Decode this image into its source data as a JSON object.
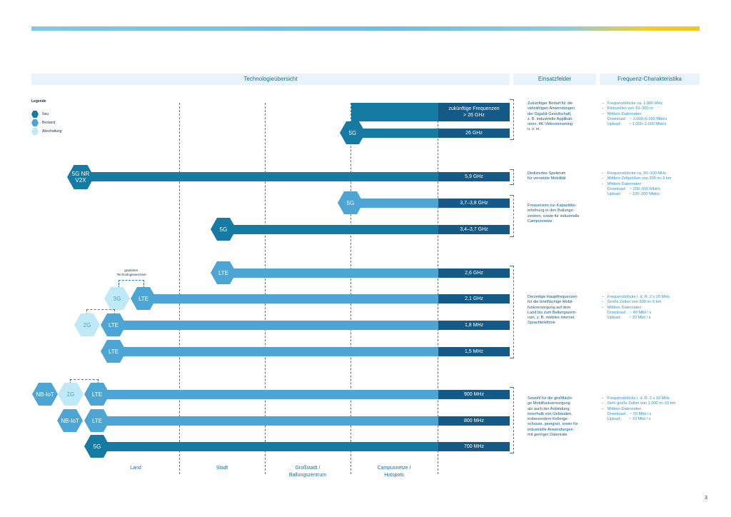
{
  "headers": {
    "technology": "Technologieübersicht",
    "fields": "Einsatzfelder",
    "frequency": "Frequenz-Charakteristika"
  },
  "legend": {
    "title": "Legende",
    "new": "Neu",
    "existing": "Bestand",
    "shutdown": "Abschaltung"
  },
  "bars": {
    "future": "zukünftige Frequenzen\n> 26 GHz",
    "f26": "26 GHz",
    "f59": "5,9 GHz",
    "f3738": "3,7–3,8 GHz",
    "f3437": "3,4–3,7 GHz",
    "f26ghz": "2,6 GHz",
    "f21": "2,1 GHz",
    "f18": "1,8 MHz",
    "f15": "1,5 MHz",
    "f900": "900 MHz",
    "f800": "800 MHz",
    "f700": "700 MHz"
  },
  "hexes": {
    "h5g_26": "5G",
    "h5gnr": "5G NR\nV2X",
    "h5g_37": "5G",
    "h5g_34": "5G",
    "hlte_26": "LTE",
    "h3g": "3G",
    "hlte_21": "LTE",
    "h2g_18": "2G",
    "hlte_18": "LTE",
    "hlte_15": "LTE",
    "hnbiot_900": "NB-IoT",
    "h2g_900": "2G",
    "hlte_900": "LTE",
    "hnbiot_800": "NB-IoT",
    "hlte_800": "LTE",
    "h5g_700": "5G"
  },
  "planned_change": "geplanter\nTechnologiewechsel",
  "einsatz": {
    "e1": "Zukünftiger Bedarf für die\nvielzähligen Anwendungen\nder Gigabit-Gesellschaft,\nz. B. industrielle Applikati-\nonen, 4K-Videostreaming\nu. v. m.",
    "e2": "Dediziertes Spektrum\nfür vernetzte Mobilität",
    "e3": "Frequenzen zur Kapazitäts-\nerhöhung in den Ballungs-\nzentren, sowie für industrielle\nCampusnetze",
    "e4": "Derzeitige Hauptfrequenzen\nfür die breitflächige Mobil-\nfunkversorgung auf dem\nLand bis zum Ballungszent-\nrum, z. B. mobiles Internet,\nSprachtelefonie",
    "e5": "Sowohl für die großflächi-\nge Mobilfunkversorgung\nals auch der Anbindung\ninnerhalb von Gebäuden,\ninsbesondere Kellerge-\nschosse, geeignet, sowie für\nindustrielle Anwendungen\nmit geringer Datenrate"
  },
  "freq": {
    "c1": "–   Frequenzblöcke ca. 1.000 MHz\n–   Kleinzellen von 10–300 m\n–   Mittlere Datenraten\n     Download:   ~ 2.000–5.000 Mbit/s\n     Upload:       ~ 1.000–2.000 Mbit/s",
    "c2": "–   Frequenzblöcke ca. 50–100 MHz\n–   Mittlere Zellgrößen von 300 m–3 km\n–   Mittlere Datenraten\n     Download:   ~ 200–500 Mbit/s\n     Upload:       ~ 100–200 Mbit/s",
    "c3": "–   Frequenzblöcke i. d. R. 2 x 20 MHz\n–   Große Zellen von 500 m–5 km\n–   Mittlere Datenraten\n     Download:   ~ 40 Mbit / s\n     Upload:       ~ 20 Mbit / s",
    "c4": "–   Frequenzblöcke i. d. R. 2 x 10 MHz\n–   Sehr große Zellen von 1.000 m–10 km\n–   Mittlere Datenraten\n     Download:   ~ 20 Mbit / s\n     Upload:       ~ 10 Mbit / s"
  },
  "regions": {
    "land": "Land",
    "stadt": "Stadt",
    "grossstadt": "Großstadt /\nBallungszentrum",
    "campus": "Campusnetze /\nHotspots"
  },
  "page_number": "3",
  "colors": {
    "new": "#157ba3",
    "existing": "#4ca5d2",
    "shutdown": "#bfe9f5",
    "label_bg": "#155a86"
  }
}
